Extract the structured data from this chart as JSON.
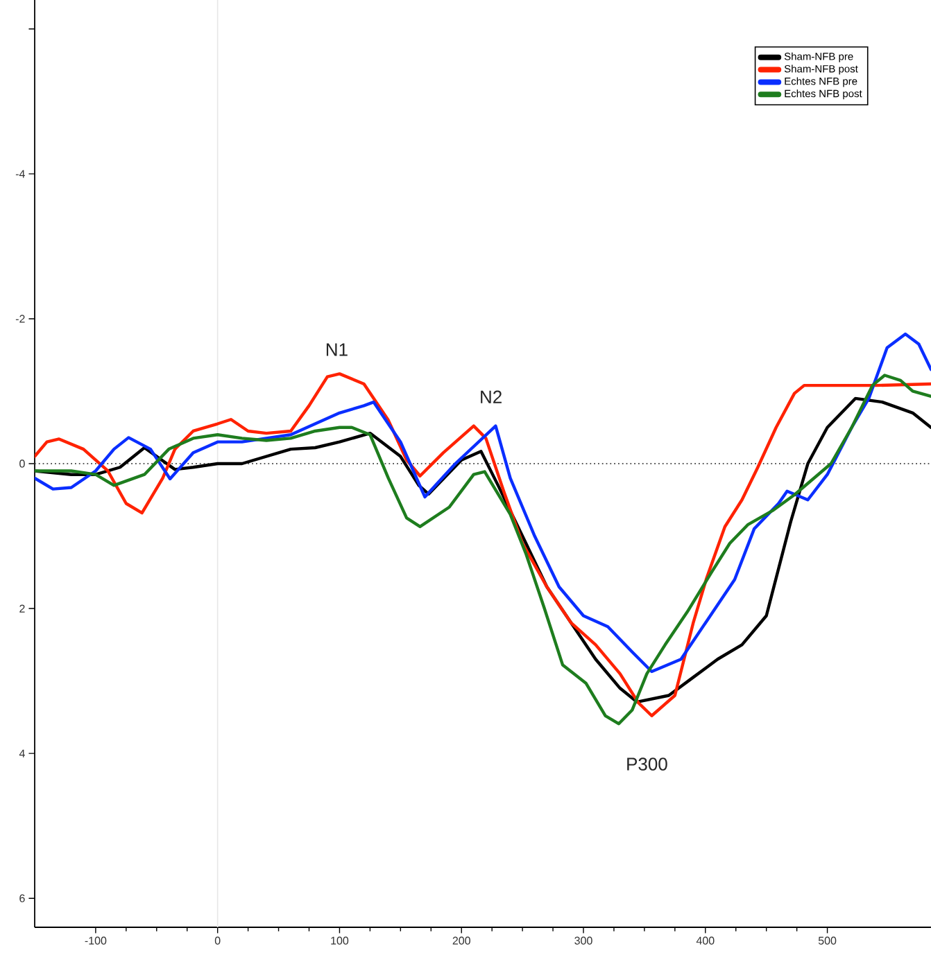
{
  "chart_data": {
    "type": "line",
    "xlim": [
      -150,
      585
    ],
    "ylim": [
      6.4,
      -6.4
    ],
    "xticks": [
      -100,
      0,
      100,
      200,
      300,
      400,
      500
    ],
    "yticks": [
      {
        "value": -6,
        "label": null
      },
      -4,
      -2,
      0,
      2,
      4,
      6
    ],
    "grid": false,
    "legend": "top right",
    "marker": "none",
    "line_style": "solid",
    "ref_lines": [
      {
        "axis": "y",
        "value": 0,
        "color": "#555555",
        "line_style": "dotted"
      },
      {
        "axis": "x",
        "value": 0,
        "color": "#e6e6e6",
        "line_style": "solid"
      }
    ],
    "annotations": [
      "N1",
      "N2",
      "P300"
    ],
    "series": [
      {
        "name": "Sham-NFB pre",
        "color": "#000000",
        "x": [
          -150,
          -120,
          -100,
          -80,
          -60,
          -35,
          -20,
          0,
          20,
          40,
          60,
          80,
          100,
          125,
          150,
          165,
          173,
          200,
          216,
          230,
          250,
          270,
          290,
          310,
          330,
          344,
          370,
          390,
          410,
          430,
          450,
          458,
          470,
          484,
          500,
          523,
          545,
          570,
          585
        ],
        "values": [
          0.1,
          0.15,
          0.15,
          0.05,
          -0.22,
          0.08,
          0.05,
          0.0,
          0.0,
          -0.1,
          -0.2,
          -0.22,
          -0.3,
          -0.42,
          -0.1,
          0.3,
          0.42,
          -0.05,
          -0.17,
          0.3,
          1.0,
          1.7,
          2.2,
          2.7,
          3.1,
          3.29,
          3.2,
          2.95,
          2.7,
          2.5,
          2.1,
          1.58,
          0.8,
          0.0,
          -0.5,
          -0.9,
          -0.85,
          -0.7,
          -0.5
        ]
      },
      {
        "name": "Sham-NFB post",
        "color": "#ff2200",
        "x": [
          -150,
          -140,
          -130,
          -110,
          -90,
          -75,
          -62,
          -45,
          -35,
          -20,
          0,
          11,
          25,
          40,
          60,
          75,
          90,
          100,
          120,
          140,
          155,
          166,
          185,
          210,
          220,
          235,
          250,
          270,
          290,
          310,
          330,
          345,
          356,
          375,
          390,
          401,
          416,
          430,
          443,
          458,
          473,
          481,
          500,
          540,
          585
        ],
        "values": [
          -0.1,
          -0.3,
          -0.34,
          -0.2,
          0.1,
          0.55,
          0.68,
          0.2,
          -0.2,
          -0.45,
          -0.55,
          -0.61,
          -0.45,
          -0.42,
          -0.45,
          -0.8,
          -1.2,
          -1.24,
          -1.1,
          -0.6,
          -0.05,
          0.17,
          -0.15,
          -0.52,
          -0.35,
          0.4,
          1.1,
          1.7,
          2.2,
          2.5,
          2.9,
          3.3,
          3.48,
          3.2,
          2.2,
          1.58,
          0.87,
          0.5,
          0.05,
          -0.5,
          -0.97,
          -1.08,
          -1.08,
          -1.08,
          -1.1
        ]
      },
      {
        "name": "Echtes NFB pre",
        "color": "#0a2eff",
        "x": [
          -150,
          -135,
          -120,
          -100,
          -85,
          -73,
          -55,
          -39,
          -20,
          0,
          20,
          40,
          60,
          80,
          100,
          120,
          128,
          150,
          170,
          195,
          228,
          240,
          260,
          280,
          300,
          320,
          340,
          356,
          380,
          400,
          424,
          440,
          460,
          467,
          484,
          500,
          520,
          534,
          549,
          564,
          575,
          585
        ],
        "values": [
          0.2,
          0.35,
          0.33,
          0.1,
          -0.2,
          -0.36,
          -0.2,
          0.21,
          -0.15,
          -0.3,
          -0.3,
          -0.35,
          -0.4,
          -0.55,
          -0.7,
          -0.8,
          -0.85,
          -0.3,
          0.46,
          0,
          -0.52,
          0.2,
          1.0,
          1.7,
          2.1,
          2.25,
          2.6,
          2.87,
          2.7,
          2.2,
          1.6,
          0.9,
          0.55,
          0.38,
          0.5,
          0.15,
          -0.5,
          -0.9,
          -1.6,
          -1.79,
          -1.65,
          -1.3
        ]
      },
      {
        "name": "Echtes NFB post",
        "color": "#1e7d1e",
        "x": [
          -150,
          -120,
          -100,
          -85,
          -60,
          -40,
          -20,
          0,
          20,
          40,
          60,
          80,
          100,
          110,
          125,
          140,
          155,
          166,
          190,
          210,
          219,
          240,
          253,
          268,
          283,
          302,
          318,
          329,
          340,
          352,
          367,
          385,
          405,
          420,
          435,
          455,
          473,
          503,
          520,
          537,
          547,
          560,
          570,
          585
        ],
        "values": [
          0.1,
          0.1,
          0.15,
          0.3,
          0.15,
          -0.2,
          -0.35,
          -0.4,
          -0.35,
          -0.32,
          -0.35,
          -0.45,
          -0.5,
          -0.5,
          -0.4,
          0.2,
          0.75,
          0.87,
          0.6,
          0.15,
          0.11,
          0.7,
          1.25,
          2.0,
          2.78,
          3.03,
          3.48,
          3.59,
          3.4,
          2.9,
          2.5,
          2.05,
          1.5,
          1.1,
          0.84,
          0.65,
          0.43,
          0.0,
          -0.5,
          -1.08,
          -1.22,
          -1.15,
          -1.0,
          -0.93
        ]
      }
    ]
  }
}
